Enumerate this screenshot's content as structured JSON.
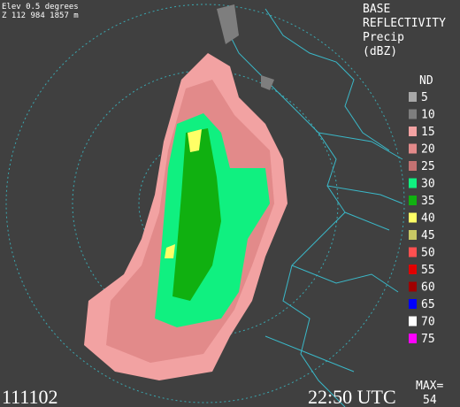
{
  "header": {
    "elevation": "Elev 0.5 degrees",
    "location": "Z 112 984 1857 m",
    "product": [
      "BASE",
      "REFLECTIVITY",
      "Precip",
      "(dBZ)"
    ]
  },
  "legend": {
    "no_data": "ND",
    "items": [
      {
        "label": "5",
        "color": "#a8a8a8"
      },
      {
        "label": "10",
        "color": "#7e7e7e"
      },
      {
        "label": "15",
        "color": "#f2a2a2"
      },
      {
        "label": "20",
        "color": "#e28a8a"
      },
      {
        "label": "25",
        "color": "#c47272"
      },
      {
        "label": "30",
        "color": "#10f080"
      },
      {
        "label": "35",
        "color": "#10b010"
      },
      {
        "label": "40",
        "color": "#ffff66"
      },
      {
        "label": "45",
        "color": "#c8c864"
      },
      {
        "label": "50",
        "color": "#ff5050"
      },
      {
        "label": "55",
        "color": "#e00000"
      },
      {
        "label": "60",
        "color": "#a00000"
      },
      {
        "label": "65",
        "color": "#0000ff"
      },
      {
        "label": "70",
        "color": "#ffffff"
      },
      {
        "label": "75",
        "color": "#ff00ff"
      }
    ]
  },
  "footer": {
    "date": "111102",
    "time": "22:50 UTC",
    "max_label": "MAX=",
    "max_value": "54"
  }
}
